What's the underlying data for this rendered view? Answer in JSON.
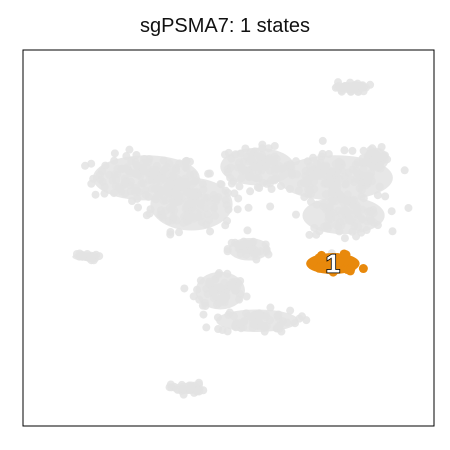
{
  "chart_data": {
    "type": "scatter",
    "title": "sgPSMA7: 1 states",
    "xlabel": "",
    "ylabel": "",
    "axes_ticks": false,
    "grid": false,
    "legend": "none",
    "colors": {
      "background_points": "#e3e3e3",
      "highlight": "#e8890c",
      "frame": "#000000",
      "label_fill": "#ffffff",
      "label_stroke": "#000000"
    },
    "series": [
      {
        "role": "background",
        "clusters": [
          {
            "cx": 0.3,
            "cy": 0.66,
            "rx": 0.13,
            "ry": 0.06
          },
          {
            "cx": 0.41,
            "cy": 0.59,
            "rx": 0.1,
            "ry": 0.07
          },
          {
            "cx": 0.57,
            "cy": 0.69,
            "rx": 0.09,
            "ry": 0.05
          },
          {
            "cx": 0.76,
            "cy": 0.66,
            "rx": 0.14,
            "ry": 0.06
          },
          {
            "cx": 0.78,
            "cy": 0.56,
            "rx": 0.1,
            "ry": 0.05
          },
          {
            "cx": 0.55,
            "cy": 0.47,
            "rx": 0.05,
            "ry": 0.03
          },
          {
            "cx": 0.48,
            "cy": 0.36,
            "rx": 0.06,
            "ry": 0.05
          },
          {
            "cx": 0.57,
            "cy": 0.28,
            "rx": 0.1,
            "ry": 0.03
          },
          {
            "cx": 0.15,
            "cy": 0.45,
            "rx": 0.03,
            "ry": 0.01
          },
          {
            "cx": 0.8,
            "cy": 0.9,
            "rx": 0.04,
            "ry": 0.015
          },
          {
            "cx": 0.4,
            "cy": 0.1,
            "rx": 0.04,
            "ry": 0.015
          },
          {
            "cx": 0.86,
            "cy": 0.71,
            "rx": 0.03,
            "ry": 0.03
          }
        ]
      },
      {
        "role": "highlight",
        "name": "1",
        "clusters": [
          {
            "cx": 0.754,
            "cy": 0.432,
            "rx": 0.065,
            "ry": 0.028
          }
        ]
      }
    ],
    "annotations": [
      {
        "text": "1",
        "x": 0.754,
        "y": 0.432
      }
    ],
    "xlim": [
      0,
      1
    ],
    "ylim": [
      0,
      1
    ]
  }
}
